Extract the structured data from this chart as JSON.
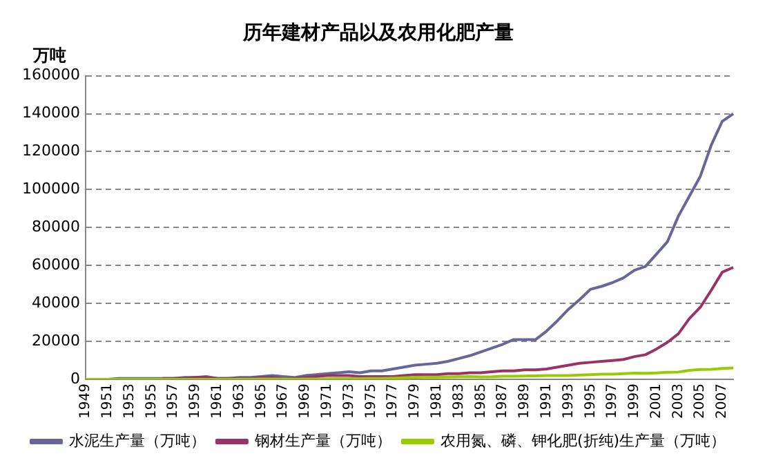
{
  "chart_data": {
    "type": "line",
    "title": "历年建材产品以及农用化肥产量",
    "ylabel": "万吨",
    "categories": [
      "1949",
      null,
      "1951",
      null,
      "1953",
      null,
      "1955",
      null,
      "1957",
      null,
      "1959",
      null,
      "1961",
      null,
      "1963",
      null,
      "1965",
      null,
      "1967",
      null,
      "1969",
      null,
      "1971",
      null,
      "1973",
      null,
      "1975",
      null,
      "1977",
      null,
      "1979",
      null,
      "1981",
      null,
      "1983",
      null,
      "1985",
      null,
      "1987",
      null,
      "1989",
      null,
      "1991",
      null,
      "1993",
      null,
      "1995",
      null,
      "1997",
      null,
      "1999",
      null,
      "2001",
      null,
      "2003",
      null,
      "2005",
      null,
      "2007",
      null
    ],
    "series": [
      {
        "name": "水泥生产量（万吨）",
        "color": "#666699",
        "values": [
          0,
          0,
          0,
          500,
          500,
          500,
          500,
          500,
          500,
          1000,
          1000,
          1500,
          500,
          500,
          1000,
          1000,
          1500,
          2000,
          1500,
          1000,
          2000,
          2500,
          3000,
          3500,
          4000,
          3500,
          4500,
          4500,
          5500,
          6500,
          7500,
          8000,
          8500,
          9500,
          11000,
          12500,
          14500,
          16500,
          18500,
          21000,
          21000,
          21000,
          25500,
          31000,
          37000,
          42000,
          47500,
          49000,
          51000,
          53500,
          57500,
          59500,
          66000,
          72500,
          86000,
          96500,
          107000,
          123500,
          136000,
          140000
        ]
      },
      {
        "name": "钢材生产量（万吨）",
        "color": "#993366",
        "values": [
          null,
          null,
          null,
          null,
          null,
          null,
          null,
          500,
          500,
          500,
          1000,
          1000,
          500,
          500,
          500,
          500,
          1000,
          1000,
          500,
          500,
          1000,
          1500,
          2000,
          2000,
          2000,
          1500,
          1500,
          1500,
          1500,
          2000,
          2500,
          2500,
          2500,
          3000,
          3000,
          3500,
          3500,
          4000,
          4500,
          4500,
          5000,
          5000,
          5500,
          6500,
          7500,
          8500,
          9000,
          9500,
          10000,
          10500,
          12000,
          13000,
          16000,
          19500,
          24000,
          32000,
          38000,
          47000,
          56500,
          59000
        ]
      },
      {
        "name": "农用氮、磷、钾化肥(折纯)生产量（万吨）",
        "color": "#99cc00",
        "values": [
          0,
          0,
          0,
          0,
          0,
          0,
          0,
          0,
          0,
          0,
          0,
          0,
          0,
          0,
          100,
          100,
          200,
          200,
          200,
          100,
          200,
          200,
          300,
          400,
          500,
          400,
          500,
          500,
          700,
          900,
          1100,
          1200,
          1200,
          1300,
          1400,
          1500,
          1300,
          1400,
          1700,
          1700,
          1800,
          1900,
          2000,
          2000,
          2000,
          2300,
          2500,
          2800,
          2800,
          3000,
          3300,
          3200,
          3400,
          3800,
          3900,
          4800,
          5200,
          5300,
          5800,
          6000
        ]
      }
    ],
    "ylim": [
      0,
      160000
    ],
    "yticks": [
      0,
      20000,
      40000,
      60000,
      80000,
      100000,
      120000,
      140000,
      160000
    ],
    "grid": "y",
    "legend": "bottom",
    "marker": "none",
    "line_style": "solid"
  }
}
